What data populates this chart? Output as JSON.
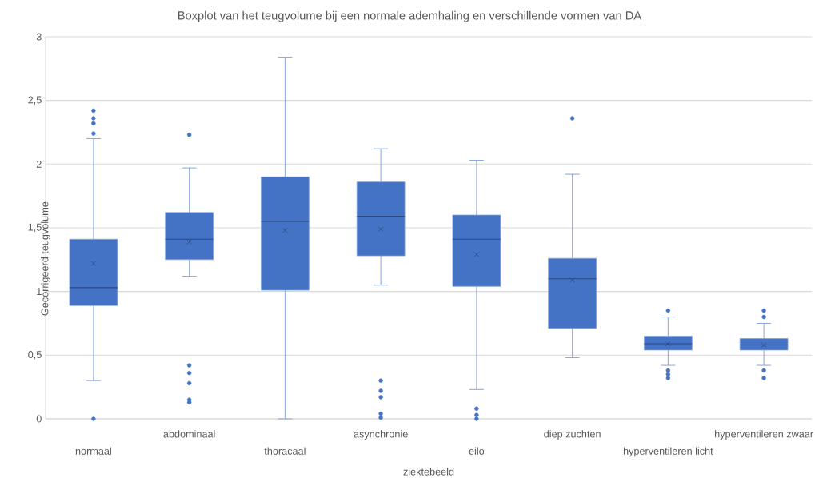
{
  "chart_data": {
    "type": "box",
    "title": "Boxplot van het teugvolume bij een normale ademhaling en verschillende vormen van DA",
    "xlabel": "ziektebeeld",
    "ylabel": "Gecorrigeerd teugvolume",
    "categories": [
      "normaal",
      "abdominaal",
      "thoracaal",
      "asynchronie",
      "eilo",
      "diep zuchten",
      "hyperventileren licht",
      "hyperventileren zwaar"
    ],
    "boxes": [
      {
        "low": 0.3,
        "q1": 0.89,
        "median": 1.03,
        "q3": 1.41,
        "high": 2.2,
        "mean": 1.22,
        "outliers": [
          2.42,
          2.36,
          2.32,
          2.24,
          0.0
        ]
      },
      {
        "low": 1.12,
        "q1": 1.25,
        "median": 1.41,
        "q3": 1.62,
        "high": 1.97,
        "mean": 1.39,
        "outliers": [
          2.23,
          0.42,
          0.36,
          0.28,
          0.15,
          0.13
        ]
      },
      {
        "low": 0.0,
        "q1": 1.01,
        "median": 1.55,
        "q3": 1.9,
        "high": 2.84,
        "mean": 1.48
      },
      {
        "low": 1.05,
        "q1": 1.28,
        "median": 1.59,
        "q3": 1.86,
        "high": 2.12,
        "mean": 1.49,
        "outliers": [
          0.3,
          0.22,
          0.17,
          0.04,
          0.01
        ]
      },
      {
        "low": 0.23,
        "q1": 1.04,
        "median": 1.41,
        "q3": 1.6,
        "high": 2.03,
        "mean": 1.29,
        "outliers": [
          0.08,
          0.03,
          0.0
        ]
      },
      {
        "low": 0.48,
        "q1": 0.71,
        "median": 1.1,
        "q3": 1.26,
        "high": 1.92,
        "mean": 1.09,
        "outliers": [
          2.36
        ]
      },
      {
        "low": 0.42,
        "q1": 0.54,
        "median": 0.59,
        "q3": 0.65,
        "high": 0.8,
        "mean": 0.59,
        "outliers": [
          0.85,
          0.38,
          0.35,
          0.32
        ]
      },
      {
        "low": 0.42,
        "q1": 0.54,
        "median": 0.58,
        "q3": 0.63,
        "high": 0.75,
        "mean": 0.58,
        "outliers": [
          0.85,
          0.8,
          0.38,
          0.32
        ]
      }
    ],
    "color": "#4472c4",
    "ylim": [
      0,
      3
    ],
    "yticks": [
      0,
      {
        "value": 0.5,
        "label": "0,5"
      },
      1,
      {
        "value": 1.5,
        "label": "1,5"
      },
      2,
      {
        "value": 2.5,
        "label": "2,5"
      },
      3
    ],
    "grid": "y"
  }
}
